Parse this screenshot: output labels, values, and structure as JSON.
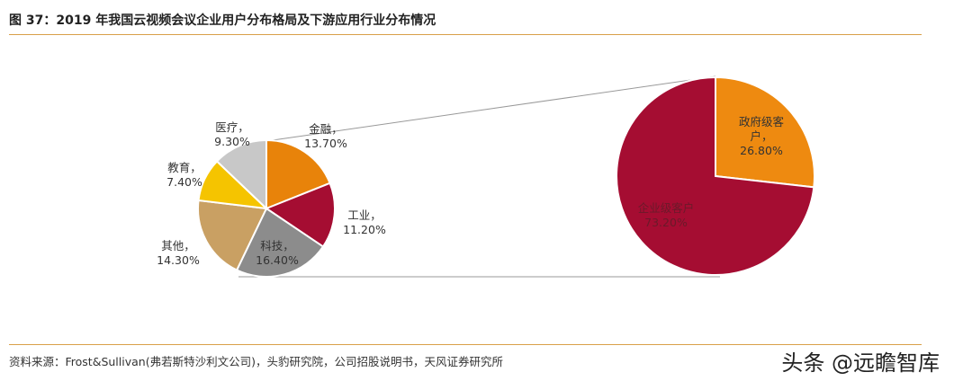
{
  "title": "图 37：2019 年我国云视频会议企业用户分布格局及下游应用行业分布情况",
  "source": "资料来源：Frost&Sullivan(弗若斯特沙利文公司)，头豹研究院，公司招股说明书，天风证券研究所",
  "watermark": "头条 @远瞻智库",
  "chart_data": [
    {
      "type": "pie",
      "categories": [
        "金融，",
        "工业，",
        "科技，",
        "其他，",
        "教育，",
        "医疗，"
      ],
      "values": [
        13.7,
        11.2,
        16.4,
        14.3,
        7.4,
        9.3
      ],
      "value_labels": [
        "13.70%",
        "11.20%",
        "16.40%",
        "14.30%",
        "7.40%",
        "9.30%"
      ],
      "colors": [
        "#e8830a",
        "#a50d32",
        "#8c8c8c",
        "#c9a063",
        "#f5c400",
        "#c8c8c8"
      ]
    },
    {
      "type": "pie",
      "categories": [
        "政府级客户，",
        "企业级客户"
      ],
      "values": [
        26.8,
        73.2
      ],
      "value_labels": [
        "26.80%",
        "73.20%"
      ],
      "colors": [
        "#ee8a10",
        "#a50d32"
      ]
    }
  ]
}
